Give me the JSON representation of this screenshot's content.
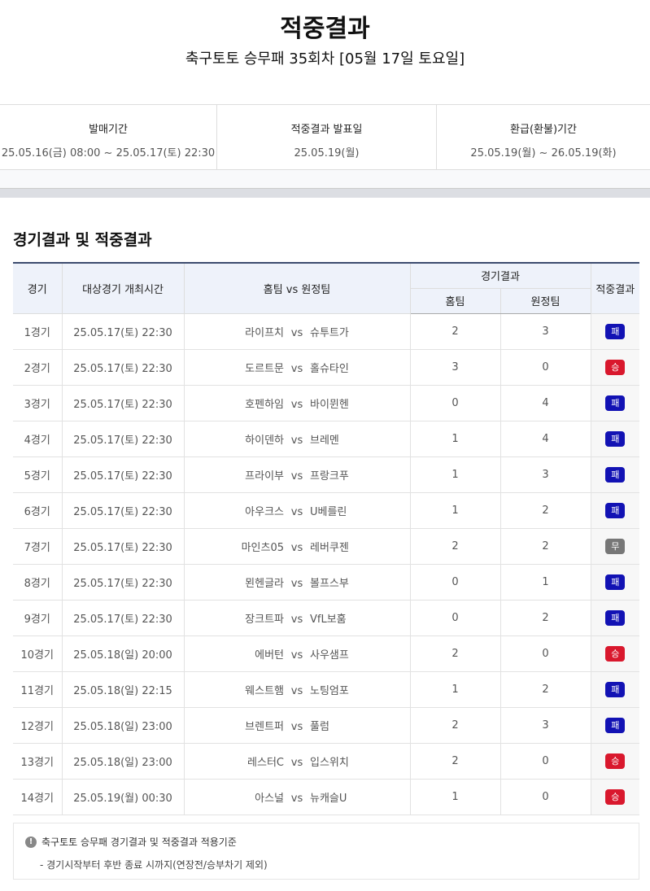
{
  "header": {
    "title": "적중결과",
    "subtitle": "축구토토 승무패 35회차 [05월 17일 토요일]"
  },
  "info": [
    {
      "label": "발매기간",
      "value": "25.05.16(금) 08:00 ~ 25.05.17(토) 22:30"
    },
    {
      "label": "적중결과 발표일",
      "value": "25.05.19(월)"
    },
    {
      "label": "환급(환불)기간",
      "value": "25.05.19(월) ~ 26.05.19(화)"
    }
  ],
  "section_title": "경기결과 및 적중결과",
  "table": {
    "headers": {
      "game": "경기",
      "time": "대상경기 개최시간",
      "teams": "홈팀 vs 원정팀",
      "result_group": "경기결과",
      "home": "홈팀",
      "away": "원정팀",
      "hit": "적중결과"
    },
    "vs": "vs",
    "rows": [
      {
        "game": "1경기",
        "time": "25.05.17(토) 22:30",
        "home_team": "라이프치",
        "away_team": "슈투트가",
        "home_score": "2",
        "away_score": "3",
        "result": "패"
      },
      {
        "game": "2경기",
        "time": "25.05.17(토) 22:30",
        "home_team": "도르트문",
        "away_team": "홀슈타인",
        "home_score": "3",
        "away_score": "0",
        "result": "승"
      },
      {
        "game": "3경기",
        "time": "25.05.17(토) 22:30",
        "home_team": "호펜하임",
        "away_team": "바이뮌헨",
        "home_score": "0",
        "away_score": "4",
        "result": "패"
      },
      {
        "game": "4경기",
        "time": "25.05.17(토) 22:30",
        "home_team": "하이덴하",
        "away_team": "브레멘",
        "home_score": "1",
        "away_score": "4",
        "result": "패"
      },
      {
        "game": "5경기",
        "time": "25.05.17(토) 22:30",
        "home_team": "프라이부",
        "away_team": "프랑크푸",
        "home_score": "1",
        "away_score": "3",
        "result": "패"
      },
      {
        "game": "6경기",
        "time": "25.05.17(토) 22:30",
        "home_team": "아우크스",
        "away_team": "U베를린",
        "home_score": "1",
        "away_score": "2",
        "result": "패"
      },
      {
        "game": "7경기",
        "time": "25.05.17(토) 22:30",
        "home_team": "마인츠05",
        "away_team": "레버쿠젠",
        "home_score": "2",
        "away_score": "2",
        "result": "무"
      },
      {
        "game": "8경기",
        "time": "25.05.17(토) 22:30",
        "home_team": "묀헨글라",
        "away_team": "볼프스부",
        "home_score": "0",
        "away_score": "1",
        "result": "패"
      },
      {
        "game": "9경기",
        "time": "25.05.17(토) 22:30",
        "home_team": "장크트파",
        "away_team": "VfL보훔",
        "home_score": "0",
        "away_score": "2",
        "result": "패"
      },
      {
        "game": "10경기",
        "time": "25.05.18(일) 20:00",
        "home_team": "에버턴",
        "away_team": "사우샘프",
        "home_score": "2",
        "away_score": "0",
        "result": "승"
      },
      {
        "game": "11경기",
        "time": "25.05.18(일) 22:15",
        "home_team": "웨스트햄",
        "away_team": "노팅엄포",
        "home_score": "1",
        "away_score": "2",
        "result": "패"
      },
      {
        "game": "12경기",
        "time": "25.05.18(일) 23:00",
        "home_team": "브렌트퍼",
        "away_team": "풀럼",
        "home_score": "2",
        "away_score": "3",
        "result": "패"
      },
      {
        "game": "13경기",
        "time": "25.05.18(일) 23:00",
        "home_team": "레스터C",
        "away_team": "입스위치",
        "home_score": "2",
        "away_score": "0",
        "result": "승"
      },
      {
        "game": "14경기",
        "time": "25.05.19(월) 00:30",
        "home_team": "아스널",
        "away_team": "뉴캐슬U",
        "home_score": "1",
        "away_score": "0",
        "result": "승"
      }
    ]
  },
  "result_colors": {
    "승": "#d9182d",
    "패": "#1212b4",
    "무": "#777777"
  },
  "note": {
    "icon": "exclamation-circle-icon",
    "title": "축구토토 승무패 경기결과 및 적중결과 적용기준",
    "detail": "- 경기시작부터 후반 종료 시까지(연장전/승부차기 제외)"
  }
}
